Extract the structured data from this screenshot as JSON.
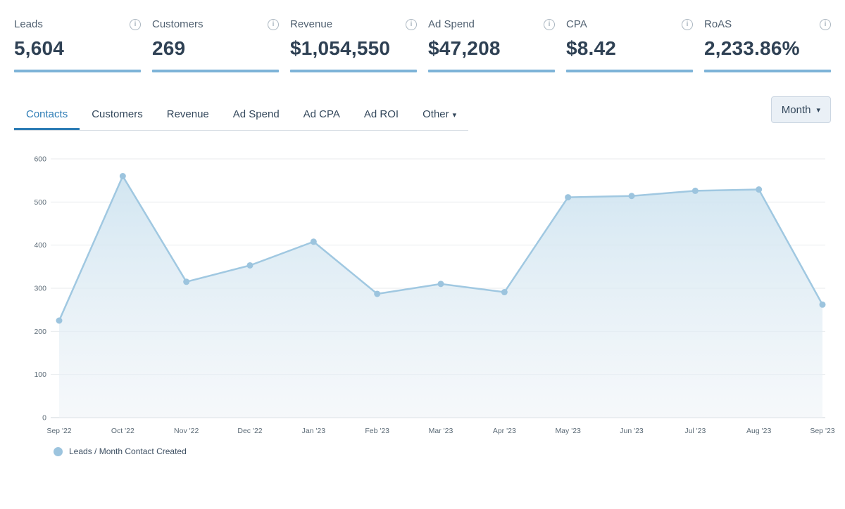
{
  "icons": {
    "info": "i",
    "caret_down": "▾"
  },
  "colors": {
    "accent_blue": "#2d7cb5",
    "kpi_underline": "#7db3d8"
  },
  "kpis": [
    {
      "label": "Leads",
      "value": "5,604"
    },
    {
      "label": "Customers",
      "value": "269"
    },
    {
      "label": "Revenue",
      "value": "$1,054,550"
    },
    {
      "label": "Ad Spend",
      "value": "$47,208"
    },
    {
      "label": "CPA",
      "value": "$8.42"
    },
    {
      "label": "RoAS",
      "value": "2,233.86%"
    }
  ],
  "tabs": [
    {
      "label": "Contacts"
    },
    {
      "label": "Customers"
    },
    {
      "label": "Revenue"
    },
    {
      "label": "Ad Spend"
    },
    {
      "label": "Ad CPA"
    },
    {
      "label": "Ad ROI"
    },
    {
      "label": "Other"
    }
  ],
  "period_selector": {
    "label": "Month"
  },
  "chart_data": {
    "type": "area",
    "title": "",
    "x": [
      "Sep '22",
      "Oct '22",
      "Nov '22",
      "Dec '22",
      "Jan '23",
      "Feb '23",
      "Mar '23",
      "Apr '23",
      "May '23",
      "Jun '23",
      "Jul '23",
      "Aug '23",
      "Sep '23"
    ],
    "series": [
      {
        "name": "Leads / Month Contact Created",
        "values": [
          225,
          560,
          315,
          353,
          408,
          287,
          310,
          291,
          511,
          514,
          526,
          529,
          262
        ]
      }
    ],
    "ylim": [
      0,
      600
    ],
    "yticks": [
      0,
      100,
      200,
      300,
      400,
      500,
      600
    ],
    "grid": true,
    "legend_position": "bottom-left",
    "colors": {
      "line": "#a0c8e1",
      "dot": "#9cc4de",
      "area_top": "#cde3f0",
      "area_bottom": "#eef3f7"
    }
  }
}
